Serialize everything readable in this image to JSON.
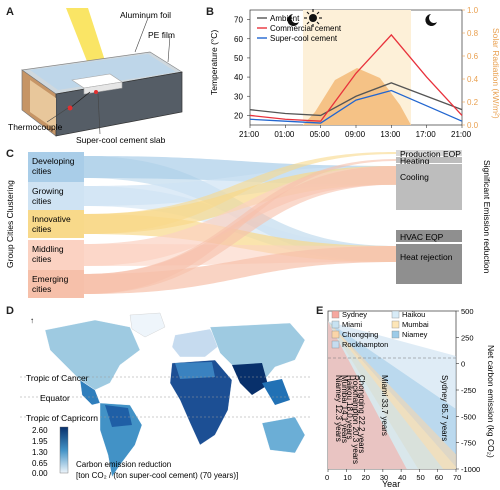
{
  "panels": {
    "a": "A",
    "b": "B",
    "c": "C",
    "d": "D",
    "e": "E"
  },
  "panel_a": {
    "labels": {
      "foil": "Aluminum foil",
      "pe": "PE film",
      "thermo": "Thermocouple",
      "slab": "Super-cool cement slab"
    }
  },
  "chart_b": {
    "ylabel_left": "Temperature (°C)",
    "ylabel_right": "Solar Radiation (kW/m²)",
    "legend": [
      "Ambient",
      "Commercial cement",
      "Super-cool cement"
    ],
    "x_ticks": [
      "21:00",
      "01:00",
      "05:00",
      "09:00",
      "13:00",
      "17:00",
      "21:00"
    ],
    "y_ticks": [
      "20",
      "30",
      "40",
      "50",
      "60",
      "70"
    ],
    "y2_ticks": [
      "0.0",
      "0.2",
      "0.4",
      "0.6",
      "0.8",
      "1.0"
    ],
    "colors": {
      "ambient": "#555555",
      "commercial": "#e8323c",
      "supercool": "#2266d0",
      "solar": "#f2b36b",
      "day": "#fdf0d8"
    }
  },
  "chart_c": {
    "left_axis_label": "Group Cities Clustering",
    "right_axis_label": "Significant Emission reduction",
    "left_nodes": [
      "Developing\ncities",
      "Growing\ncities",
      "Innovative\ncities",
      "Middling\ncities",
      "Emerging\ncities"
    ],
    "right_nodes": [
      "Production EQP",
      "Heating",
      "Cooling",
      "HVAC EQP",
      "Heat rejection"
    ],
    "colors": [
      "#a9cde8",
      "#cfe3f3",
      "#f8d98a",
      "#fbd2c2",
      "#f6c0aa"
    ]
  },
  "panel_d": {
    "lines": [
      "Tropic of Cancer",
      "Equator",
      "Tropic of Capricorn"
    ],
    "legend_ticks": [
      "2.60",
      "1.95",
      "1.30",
      "0.65",
      "0.00"
    ],
    "legend_title": "Carbon emission reduction",
    "legend_unit": "[ton CO₂ / (ton super-cool cement) (70 years)]"
  },
  "chart_e": {
    "xlabel": "Year",
    "ylabel": "Net carbon emission (kg CO₂)",
    "x_ticks": [
      "0",
      "10",
      "20",
      "30",
      "40",
      "50",
      "60",
      "70"
    ],
    "y_ticks": [
      "500",
      "250",
      "0",
      "-250",
      "-500",
      "-750",
      "-1000"
    ],
    "legend": [
      "Sydney",
      "Haikou",
      "Miami",
      "Mumbai",
      "Chongqing",
      "Niamey",
      "Rockhampton"
    ],
    "annotations": [
      "Niamey 12.3 years",
      "Mumbai 14.1 years",
      "Haikou 18.0 years",
      "Rockhampton 20.3 years",
      "Chongqing 22.2 years",
      "Miami 33.7 years",
      "Sydney 85.7 years"
    ]
  },
  "chart_data": [
    {
      "type": "line",
      "title": "",
      "x": [
        "21:00",
        "01:00",
        "05:00",
        "09:00",
        "13:00",
        "17:00",
        "21:00"
      ],
      "series": [
        {
          "name": "Ambient",
          "values": [
            23,
            21,
            20,
            30,
            37,
            30,
            23
          ]
        },
        {
          "name": "Commercial cement",
          "values": [
            20,
            18,
            17,
            42,
            62,
            40,
            20
          ]
        },
        {
          "name": "Super-cool cement",
          "values": [
            18,
            17,
            16,
            28,
            33,
            25,
            17
          ]
        }
      ],
      "xlabel": "",
      "ylabel": "Temperature (°C)",
      "ylim": [
        15,
        75
      ],
      "y2label": "Solar Radiation (kW/m²)",
      "y2lim": [
        0,
        1.0
      ]
    },
    {
      "type": "line",
      "title": "",
      "xlabel": "Year",
      "ylabel": "Net carbon emission (kg CO₂)",
      "xlim": [
        0,
        70
      ],
      "ylim": [
        -1000,
        500
      ],
      "series": [
        {
          "name": "Niamey",
          "payback_years": 12.3
        },
        {
          "name": "Mumbai",
          "payback_years": 14.1
        },
        {
          "name": "Haikou",
          "payback_years": 18.0
        },
        {
          "name": "Rockhampton",
          "payback_years": 20.3
        },
        {
          "name": "Chongqing",
          "payback_years": 22.2
        },
        {
          "name": "Miami",
          "payback_years": 33.7
        },
        {
          "name": "Sydney",
          "payback_years": 85.7
        }
      ]
    }
  ]
}
